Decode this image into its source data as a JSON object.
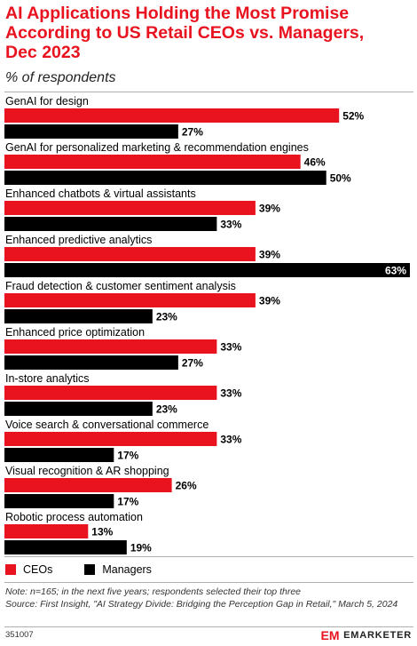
{
  "header": {
    "title": "AI Applications Holding the Most Promise According to US Retail CEOs vs. Managers, Dec 2023",
    "subtitle": "% of respondents"
  },
  "colors": {
    "ceos": "#e8131f",
    "managers": "#000000",
    "brand": "#e8131f"
  },
  "chart_data": {
    "type": "bar",
    "orientation": "horizontal",
    "title": "AI Applications Holding the Most Promise According to US Retail CEOs vs. Managers, Dec 2023",
    "subtitle": "% of respondents",
    "value_suffix": "%",
    "xlim": [
      0,
      63
    ],
    "grid": false,
    "legend_position": "bottom-left",
    "categories": [
      "GenAI for design",
      "GenAI for personalized marketing & recommendation engines",
      "Enhanced chatbots & virtual assistants",
      "Enhanced predictive analytics",
      "Fraud detection & customer sentiment analysis",
      "Enhanced price optimization",
      "In-store analytics",
      "Voice search & conversational commerce",
      "Visual recognition & AR shopping",
      "Robotic process automation"
    ],
    "series": [
      {
        "name": "CEOs",
        "color": "#e8131f",
        "values": [
          52,
          46,
          39,
          39,
          39,
          33,
          33,
          33,
          26,
          13
        ]
      },
      {
        "name": "Managers",
        "color": "#000000",
        "values": [
          27,
          50,
          33,
          63,
          23,
          27,
          23,
          17,
          17,
          19
        ]
      }
    ]
  },
  "legend": {
    "ceos_label": "CEOs",
    "managers_label": "Managers"
  },
  "footer": {
    "note": "Note: n=165; in the next five years; respondents selected their top three",
    "source": "Source: First Insight, \"AI Strategy Divide: Bridging the Perception Gap in Retail,\" March 5, 2024",
    "chart_id": "351007",
    "brand": "EMARKETER",
    "brand_logo_text": "EM"
  }
}
